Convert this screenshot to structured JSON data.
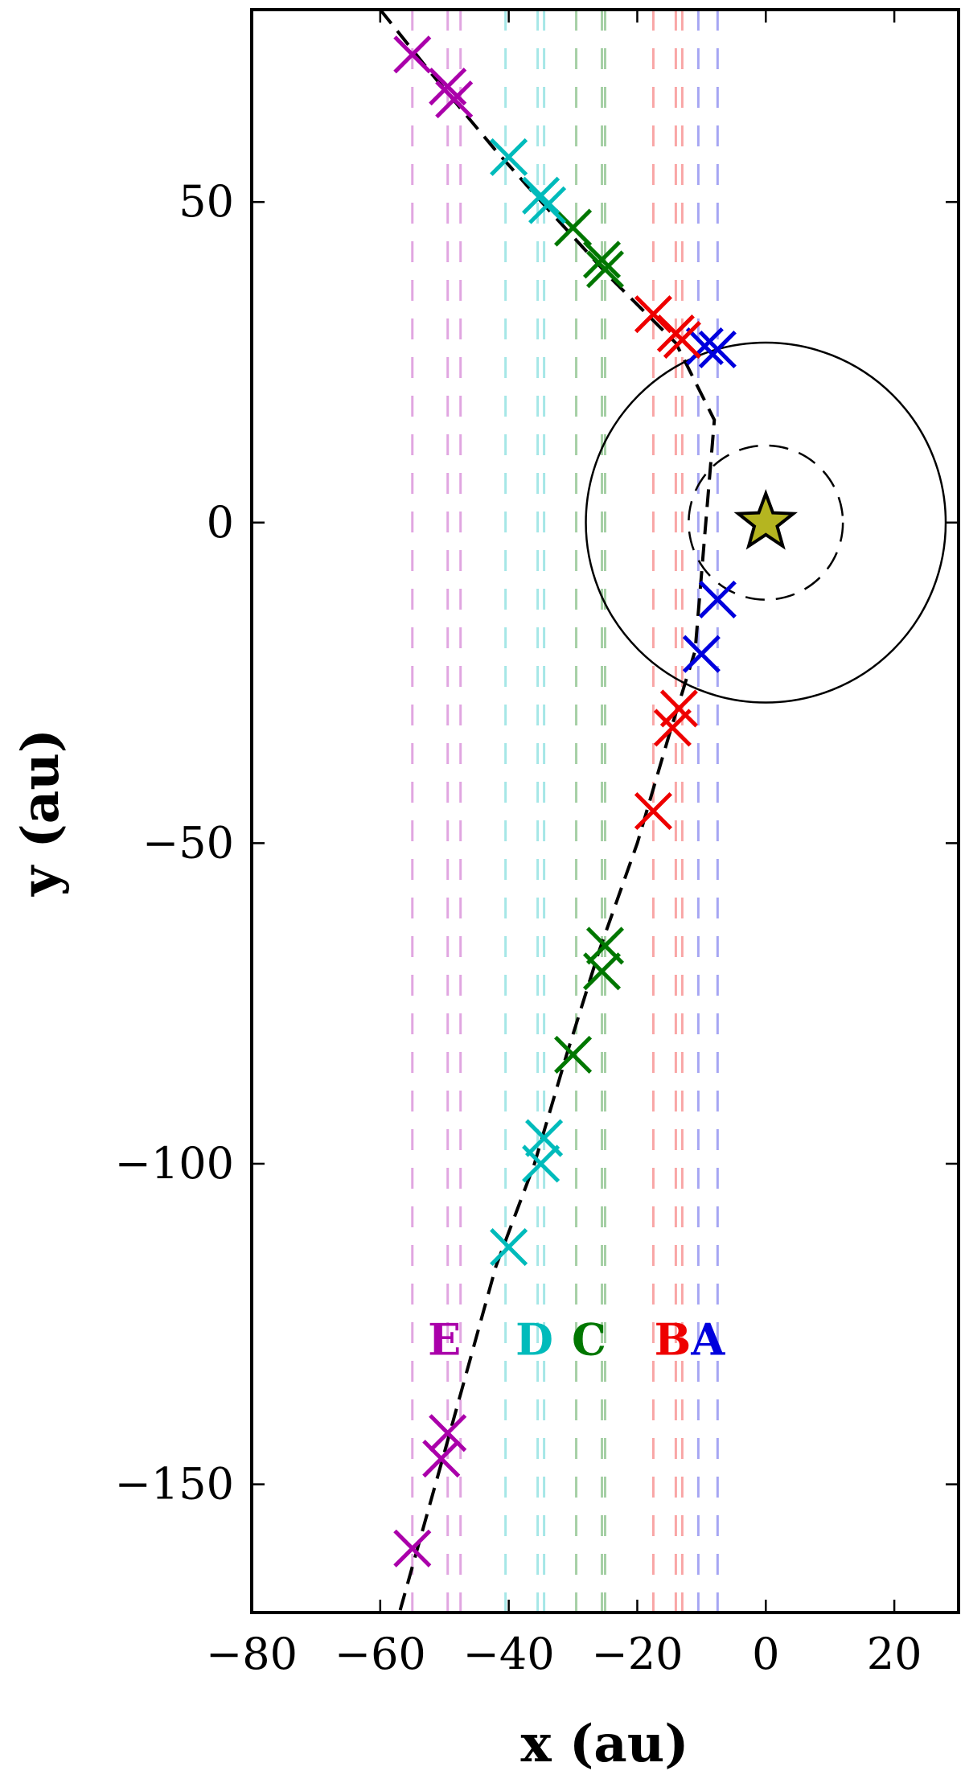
{
  "chart_data": {
    "type": "scatter",
    "xlabel": "x (au)",
    "ylabel": "y (au)",
    "xlim": [
      -80,
      30
    ],
    "ylim": [
      -170,
      80
    ],
    "xticks": [
      -80,
      -60,
      -40,
      -20,
      0,
      20
    ],
    "yticks": [
      -150,
      -100,
      -50,
      0,
      50
    ],
    "xtick_labels": [
      "−80",
      "−60",
      "−40",
      "−20",
      "0",
      "20"
    ],
    "ytick_labels": [
      "−150",
      "−100",
      "−50",
      "0",
      "50"
    ],
    "grid": false,
    "star": {
      "x": 0,
      "y": 0,
      "color": "#b5b520"
    },
    "circles": [
      {
        "r": 28,
        "style": "solid"
      },
      {
        "r": 12,
        "style": "dashed"
      }
    ],
    "trajectory": {
      "style": "dashed",
      "points": [
        [
          -60,
          80
        ],
        [
          -52,
          70
        ],
        [
          -42,
          58
        ],
        [
          -34,
          49
        ],
        [
          -24,
          38
        ],
        [
          -14,
          28
        ],
        [
          -8,
          16
        ],
        [
          -11,
          -20
        ],
        [
          -15,
          -33
        ],
        [
          -20,
          -50
        ],
        [
          -26,
          -67
        ],
        [
          -31,
          -83
        ],
        [
          -36,
          -100
        ],
        [
          -42,
          -116
        ],
        [
          -50,
          -145
        ],
        [
          -57,
          -170
        ]
      ]
    },
    "series": [
      {
        "name": "A",
        "color": "#0000dd",
        "vlines": [
          -10.5,
          -7.5
        ],
        "points": [
          [
            -9.5,
            27.5
          ],
          [
            -7.5,
            27
          ],
          [
            -7.5,
            -12
          ],
          [
            -10,
            -20.5
          ]
        ]
      },
      {
        "name": "B",
        "color": "#ee0000",
        "vlines": [
          -17.5,
          -14,
          -13
        ],
        "points": [
          [
            -17.5,
            32.5
          ],
          [
            -14,
            29.5
          ],
          [
            -13,
            28.5
          ],
          [
            -13.5,
            -29
          ],
          [
            -14.5,
            -32
          ],
          [
            -17.5,
            -45
          ]
        ]
      },
      {
        "name": "C",
        "color": "#007700",
        "vlines": [
          -29.5,
          -25.5,
          -25
        ],
        "points": [
          [
            -30,
            46
          ],
          [
            -25.5,
            41
          ],
          [
            -25,
            39.5
          ],
          [
            -25,
            -66
          ],
          [
            -25.5,
            -70
          ],
          [
            -30,
            -83
          ]
        ]
      },
      {
        "name": "D",
        "color": "#00bbbb",
        "vlines": [
          -40.5,
          -35.5,
          -34.5
        ],
        "points": [
          [
            -40,
            57
          ],
          [
            -35,
            51
          ],
          [
            -34,
            49.5
          ],
          [
            -34.5,
            -96
          ],
          [
            -35,
            -100
          ],
          [
            -40,
            -113
          ]
        ]
      },
      {
        "name": "E",
        "color": "#aa00aa",
        "vlines": [
          -55,
          -49.5,
          -47.5
        ],
        "points": [
          [
            -55,
            73
          ],
          [
            -49.5,
            68
          ],
          [
            -48.5,
            66
          ],
          [
            -49.5,
            -142
          ],
          [
            -50.5,
            -146
          ],
          [
            -55,
            -160
          ]
        ]
      }
    ],
    "group_labels": [
      {
        "text": "E",
        "x": -50,
        "y": -128,
        "color": "#aa00aa"
      },
      {
        "text": "D",
        "x": -36,
        "y": -128,
        "color": "#00bbbb"
      },
      {
        "text": "C",
        "x": -27.5,
        "y": -128,
        "color": "#007700"
      },
      {
        "text": "B",
        "x": -14.5,
        "y": -128,
        "color": "#ee0000"
      },
      {
        "text": "A",
        "x": -9,
        "y": -128,
        "color": "#0000dd"
      }
    ]
  }
}
